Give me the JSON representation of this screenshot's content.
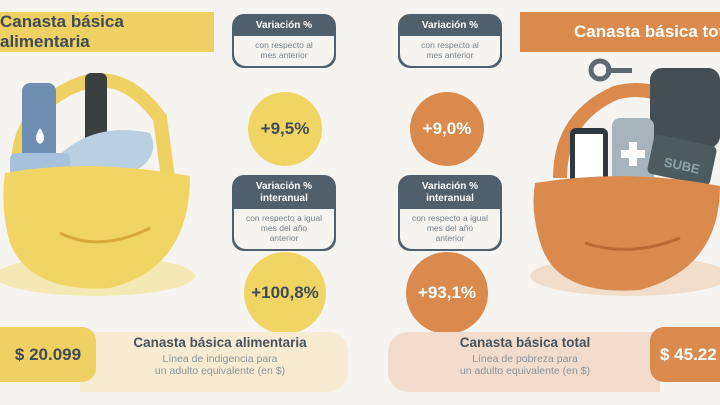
{
  "left": {
    "banner_title": "Canasta básica alimentaria",
    "monthly": {
      "heading": "Variación %",
      "subtitle_line1": "con respecto al",
      "subtitle_line2": "mes anterior",
      "value": "+9,5%"
    },
    "yearly": {
      "heading_line1": "Variación %",
      "heading_line2": "interanual",
      "subtitle_line1": "con respecto a igual",
      "subtitle_line2": "mes del año",
      "subtitle_line3": "anterior",
      "value": "+100,8%"
    },
    "price": "$ 20.099",
    "info_title": "Canasta básica alimentaria",
    "info_desc_line1": "Línea de indigencia para",
    "info_desc_line2": "un adulto equivalente (en $)"
  },
  "right": {
    "banner_title": "Canasta básica total",
    "monthly": {
      "heading": "Variación %",
      "subtitle_line1": "con respecto al",
      "subtitle_line2": "mes anterior",
      "value": "+9,0%"
    },
    "yearly": {
      "heading_line1": "Variación %",
      "heading_line2": "interanual",
      "subtitle_line1": "con respecto a igual",
      "subtitle_line2": "mes del año",
      "subtitle_line3": "anterior",
      "value": "+93,1%"
    },
    "price": "$ 45.22",
    "info_title": "Canasta básica total",
    "info_desc_line1": "Línea de pobreza para",
    "info_desc_line2": "un adulto equivalente (en $)",
    "card_label": "SUBE"
  },
  "colors": {
    "yellow": "#efd062",
    "orange": "#d98a4c",
    "slate": "#4f5f6b",
    "cream_left": "#f7ecd2",
    "cream_right": "#f3dccb"
  }
}
